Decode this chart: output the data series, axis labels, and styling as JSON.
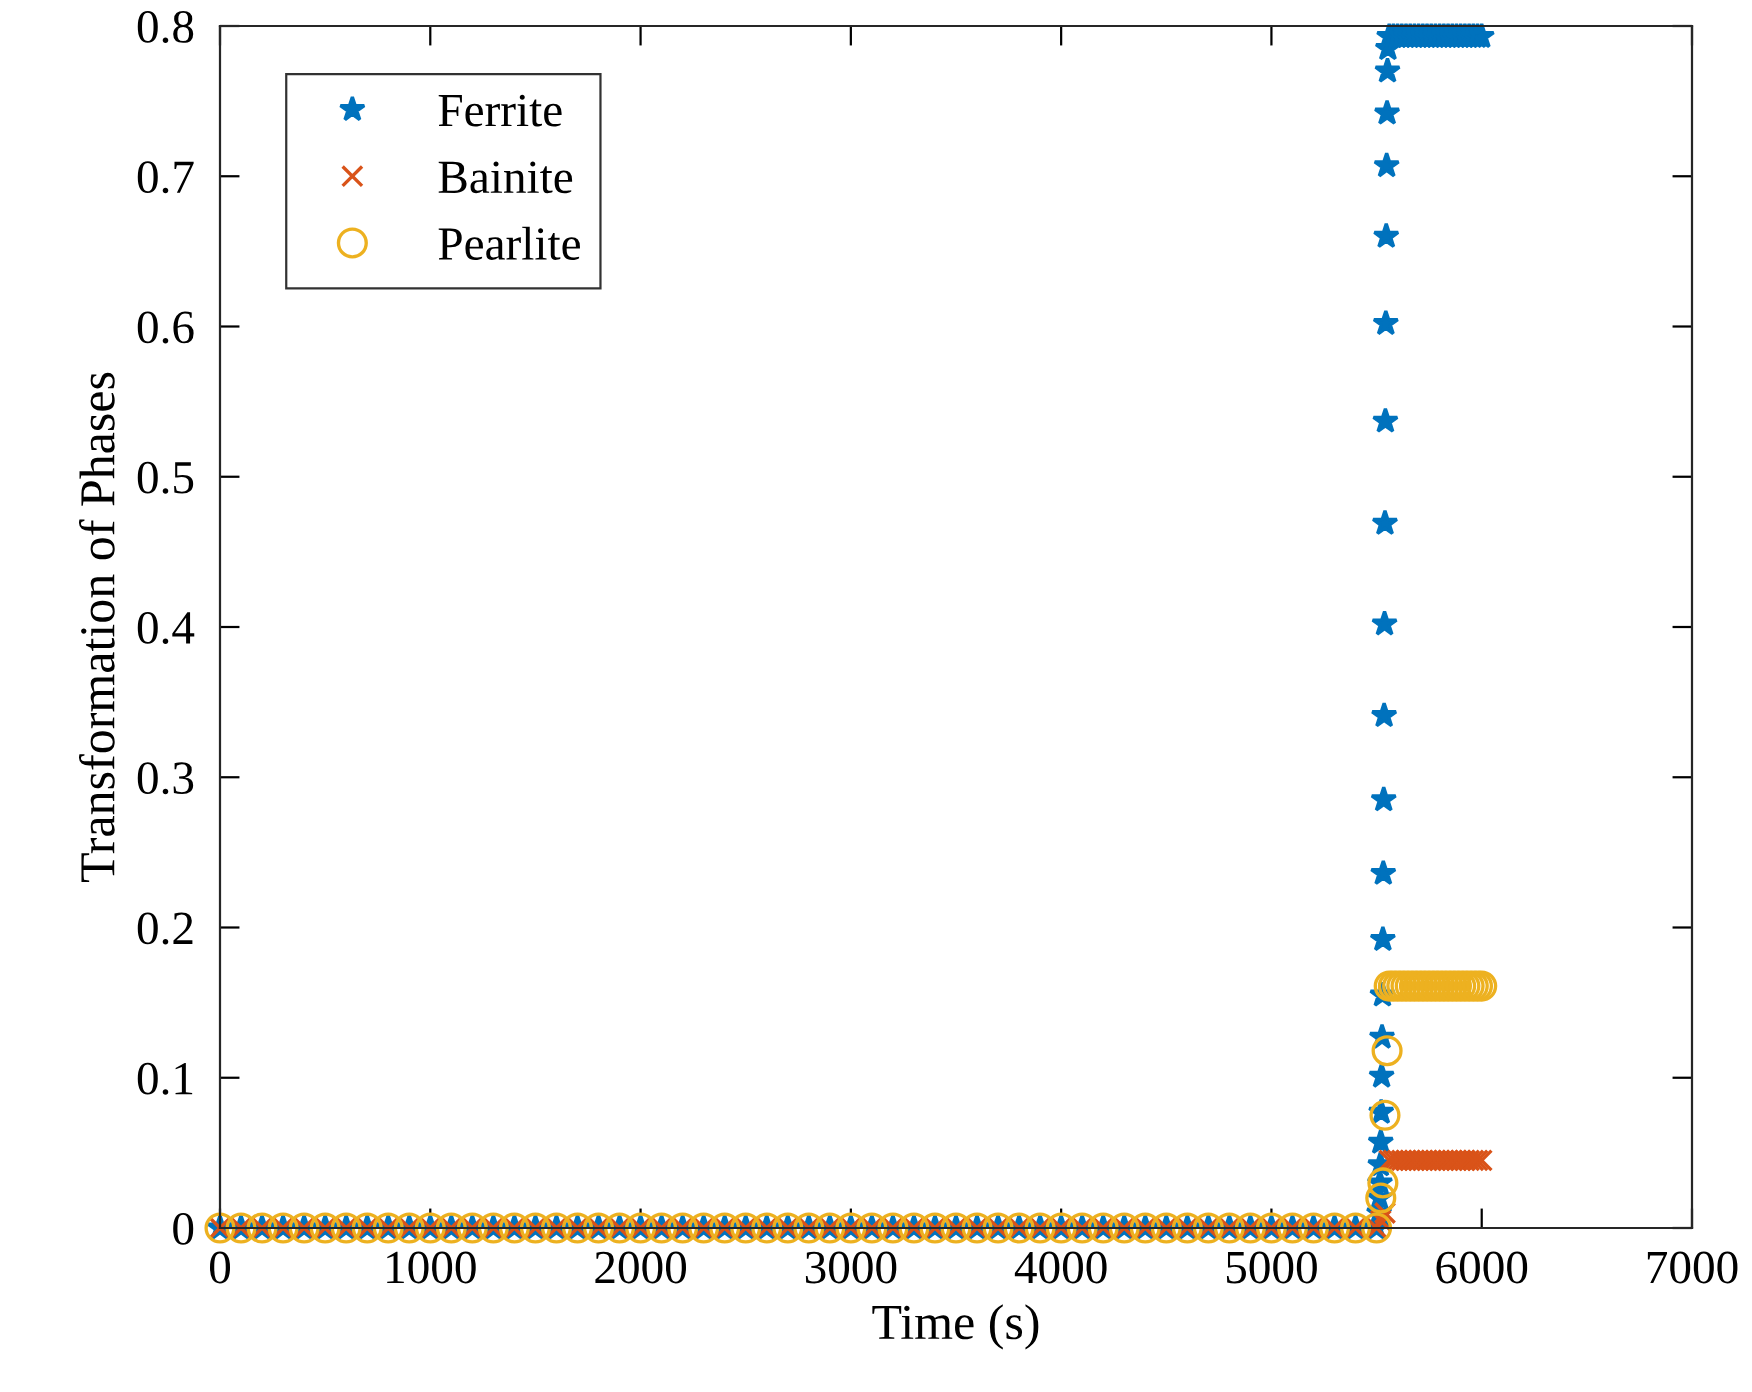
{
  "chart_data": {
    "type": "scatter",
    "xlabel": "Time (s)",
    "ylabel": "Transformation of Phases",
    "xlim": [
      0,
      7000
    ],
    "ylim": [
      0,
      0.8
    ],
    "xticks": [
      0,
      1000,
      2000,
      3000,
      4000,
      5000,
      6000,
      7000
    ],
    "yticks": [
      0,
      0.1,
      0.2,
      0.3,
      0.4,
      0.5,
      0.6,
      0.7,
      0.8
    ],
    "grid": false,
    "legend": "top left",
    "line_style": "none",
    "series": [
      {
        "name": "Ferrite",
        "color": "#0072bd",
        "marker": "star",
        "x": [
          0,
          100,
          200,
          300,
          400,
          500,
          600,
          700,
          800,
          900,
          1000,
          1100,
          1200,
          1300,
          1400,
          1500,
          1600,
          1700,
          1800,
          1900,
          2000,
          2100,
          2200,
          2300,
          2400,
          2500,
          2600,
          2700,
          2800,
          2900,
          3000,
          3100,
          3200,
          3300,
          3400,
          3500,
          3600,
          3700,
          3800,
          3900,
          4000,
          4100,
          4200,
          4300,
          4400,
          4500,
          4600,
          4700,
          4800,
          4900,
          5000,
          5100,
          5200,
          5300,
          5400,
          5500,
          5512,
          5514,
          5516,
          5518,
          5520,
          5522,
          5524,
          5526,
          5528,
          5530,
          5532,
          5534,
          5536,
          5538,
          5540,
          5542,
          5544,
          5546,
          5548,
          5550,
          5552,
          5554,
          5560,
          5580,
          5600,
          5620,
          5640,
          5660,
          5680,
          5700,
          5720,
          5740,
          5760,
          5780,
          5800,
          5820,
          5840,
          5860,
          5880,
          5900,
          5920,
          5940,
          5960,
          5980,
          6000
        ],
        "values": [
          0,
          0,
          0,
          0,
          0,
          0,
          0,
          0,
          0,
          0,
          0,
          0,
          0,
          0,
          0,
          0,
          0,
          0,
          0,
          0,
          0,
          0,
          0,
          0,
          0,
          0,
          0,
          0,
          0,
          0,
          0,
          0,
          0,
          0,
          0,
          0,
          0,
          0,
          0,
          0,
          0,
          0,
          0,
          0,
          0,
          0,
          0,
          0,
          0,
          0,
          0,
          0,
          0,
          0,
          0,
          0,
          0.01,
          0.02,
          0.03,
          0.042,
          0.057,
          0.077,
          0.101,
          0.127,
          0.155,
          0.192,
          0.236,
          0.285,
          0.341,
          0.402,
          0.469,
          0.537,
          0.602,
          0.66,
          0.707,
          0.742,
          0.77,
          0.785,
          0.793,
          0.793,
          0.793,
          0.793,
          0.793,
          0.793,
          0.793,
          0.793,
          0.793,
          0.793,
          0.793,
          0.793,
          0.793,
          0.793,
          0.793,
          0.793,
          0.793,
          0.793,
          0.793,
          0.793,
          0.793,
          0.793,
          0.793
        ]
      },
      {
        "name": "Bainite",
        "color": "#d95319",
        "marker": "cross",
        "x": [
          0,
          100,
          200,
          300,
          400,
          500,
          600,
          700,
          800,
          900,
          1000,
          1100,
          1200,
          1300,
          1400,
          1500,
          1600,
          1700,
          1800,
          1900,
          2000,
          2100,
          2200,
          2300,
          2400,
          2500,
          2600,
          2700,
          2800,
          2900,
          3000,
          3100,
          3200,
          3300,
          3400,
          3500,
          3600,
          3700,
          3800,
          3900,
          4000,
          4100,
          4200,
          4300,
          4400,
          4500,
          4600,
          4700,
          4800,
          4900,
          5000,
          5100,
          5200,
          5300,
          5400,
          5500,
          5520,
          5540,
          5560,
          5580,
          5600,
          5620,
          5640,
          5660,
          5680,
          5700,
          5720,
          5740,
          5760,
          5780,
          5800,
          5820,
          5840,
          5860,
          5880,
          5900,
          5920,
          5940,
          5960,
          5980,
          6000
        ],
        "values": [
          0,
          0,
          0,
          0,
          0,
          0,
          0,
          0,
          0,
          0,
          0,
          0,
          0,
          0,
          0,
          0,
          0,
          0,
          0,
          0,
          0,
          0,
          0,
          0,
          0,
          0,
          0,
          0,
          0,
          0,
          0,
          0,
          0,
          0,
          0,
          0,
          0,
          0,
          0,
          0,
          0,
          0,
          0,
          0,
          0,
          0,
          0,
          0,
          0,
          0,
          0,
          0,
          0,
          0,
          0,
          0,
          0.005,
          0.01,
          0.045,
          0.045,
          0.045,
          0.045,
          0.045,
          0.045,
          0.045,
          0.045,
          0.045,
          0.045,
          0.045,
          0.045,
          0.045,
          0.045,
          0.045,
          0.045,
          0.045,
          0.045,
          0.045,
          0.045,
          0.045,
          0.045,
          0.045
        ]
      },
      {
        "name": "Pearlite",
        "color": "#edb120",
        "marker": "circle",
        "x": [
          0,
          100,
          200,
          300,
          400,
          500,
          600,
          700,
          800,
          900,
          1000,
          1100,
          1200,
          1300,
          1400,
          1500,
          1600,
          1700,
          1800,
          1900,
          2000,
          2100,
          2200,
          2300,
          2400,
          2500,
          2600,
          2700,
          2800,
          2900,
          3000,
          3100,
          3200,
          3300,
          3400,
          3500,
          3600,
          3700,
          3800,
          3900,
          4000,
          4100,
          4200,
          4300,
          4400,
          4500,
          4600,
          4700,
          4800,
          4900,
          5000,
          5100,
          5200,
          5300,
          5400,
          5500,
          5520,
          5530,
          5540,
          5550,
          5560,
          5580,
          5600,
          5620,
          5640,
          5660,
          5680,
          5700,
          5720,
          5740,
          5760,
          5780,
          5800,
          5820,
          5840,
          5860,
          5880,
          5900,
          5920,
          5940,
          5960,
          5980,
          6000
        ],
        "values": [
          0,
          0,
          0,
          0,
          0,
          0,
          0,
          0,
          0,
          0,
          0,
          0,
          0,
          0,
          0,
          0,
          0,
          0,
          0,
          0,
          0,
          0,
          0,
          0,
          0,
          0,
          0,
          0,
          0,
          0,
          0,
          0,
          0,
          0,
          0,
          0,
          0,
          0,
          0,
          0,
          0,
          0,
          0,
          0,
          0,
          0,
          0,
          0,
          0,
          0,
          0,
          0,
          0,
          0,
          0,
          0,
          0.02,
          0.03,
          0.075,
          0.118,
          0.161,
          0.161,
          0.161,
          0.161,
          0.161,
          0.161,
          0.161,
          0.161,
          0.161,
          0.161,
          0.161,
          0.161,
          0.161,
          0.161,
          0.161,
          0.161,
          0.161,
          0.161,
          0.161,
          0.161,
          0.161,
          0.161,
          0.161
        ]
      }
    ]
  }
}
